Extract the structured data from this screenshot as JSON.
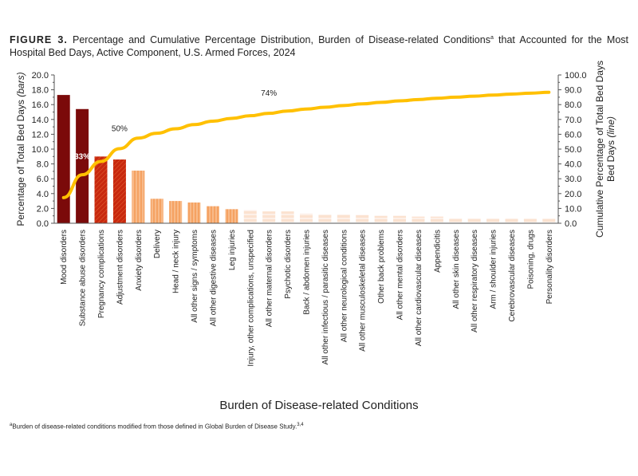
{
  "figure_label": "FIGURE 3.",
  "title": "Percentage and Cumulative Percentage Distribution, Burden of Disease-related Conditions",
  "title_superscript": "a",
  "title_rest": " that Accounted for the Most Hospital Bed Days, Active Component, U.S. Armed Forces, 2024",
  "footnote_marker": "a",
  "footnote": "Burden of disease-related conditions modified from those defined in Global Burden of Disease Study.",
  "footnote_refs": "3,4",
  "chart_data": {
    "type": "bar+line",
    "xlabel": "Burden of Disease-related Conditions",
    "ylabel": "Percentage of Total Bed Days",
    "ylabel_italic": "(bars)",
    "y2label": "Cumulative Percentage of Total Bed Days",
    "y2label_italic": "(line)",
    "ylim": [
      0,
      20
    ],
    "y2lim": [
      0,
      100
    ],
    "yticks": [
      "0.0",
      "2.0",
      "4.0",
      "6.0",
      "8.0",
      "10.0",
      "12.0",
      "14.0",
      "16.0",
      "18.0",
      "20.0"
    ],
    "y2ticks": [
      "0.0",
      "10.0",
      "20.0",
      "30.0",
      "40.0",
      "50.0",
      "60.0",
      "70.0",
      "80.0",
      "90.0",
      "100.0"
    ],
    "grid": false,
    "categories": [
      "Mood disorders",
      "Substance abuse disorders",
      "Pregnancy complications",
      "Adjustment disorders",
      "Anxiety disorders",
      "Delivery",
      "Head / neck injury",
      "All other signs / symptoms",
      "All other digestive diseases",
      "Leg injuries",
      "Injury, other complications, unspecified",
      "All other maternal disorders",
      "Psychotic disorders",
      "Back / abdomen injuries",
      "All other infectious / parasitic diseases",
      "All other neurological conditions",
      "All other musculoskeletal diseases",
      "Other back problems",
      "All other mental disorders",
      "All other cardiovascular diseases",
      "Appendicitis",
      "All other skin diseases",
      "All other respiratory diseases",
      "Arm / shoulder injuries",
      "Cerebrovascular diseases",
      "Poisoning, drugs",
      "Personality disorders"
    ],
    "bars": [
      17.3,
      15.4,
      9.0,
      8.6,
      7.1,
      3.3,
      3.0,
      2.8,
      2.3,
      1.9,
      1.8,
      1.6,
      1.6,
      1.3,
      1.2,
      1.2,
      1.1,
      1.0,
      1.0,
      0.9,
      0.9,
      0.7,
      0.7,
      0.7,
      0.7,
      0.6,
      0.6
    ],
    "cumulative": [
      17.3,
      32.7,
      41.7,
      50.3,
      57.4,
      60.7,
      63.7,
      66.5,
      68.8,
      70.7,
      72.5,
      74.1,
      75.7,
      77.0,
      78.2,
      79.4,
      80.5,
      81.5,
      82.5,
      83.4,
      84.3,
      85.0,
      85.7,
      86.4,
      87.1,
      87.7,
      88.3
    ],
    "bar_groups": [
      {
        "range": [
          0,
          1
        ],
        "color": "#7b0a0a",
        "fill": "solid"
      },
      {
        "range": [
          2,
          3
        ],
        "color": "#c8280e",
        "fill": "diagonal-hatch"
      },
      {
        "range": [
          4,
          9
        ],
        "color": "#f5a262",
        "fill": "vertical-stripes"
      },
      {
        "range": [
          10,
          26
        ],
        "color": "#fbe2d0",
        "fill": "horizontal-stripes"
      }
    ],
    "line_color": "#ffc000",
    "annotations": [
      {
        "text": "33%",
        "index": 1,
        "color": "#ffffff"
      },
      {
        "text": "50%",
        "index": 3
      },
      {
        "text": "74%",
        "index": 11
      }
    ]
  }
}
